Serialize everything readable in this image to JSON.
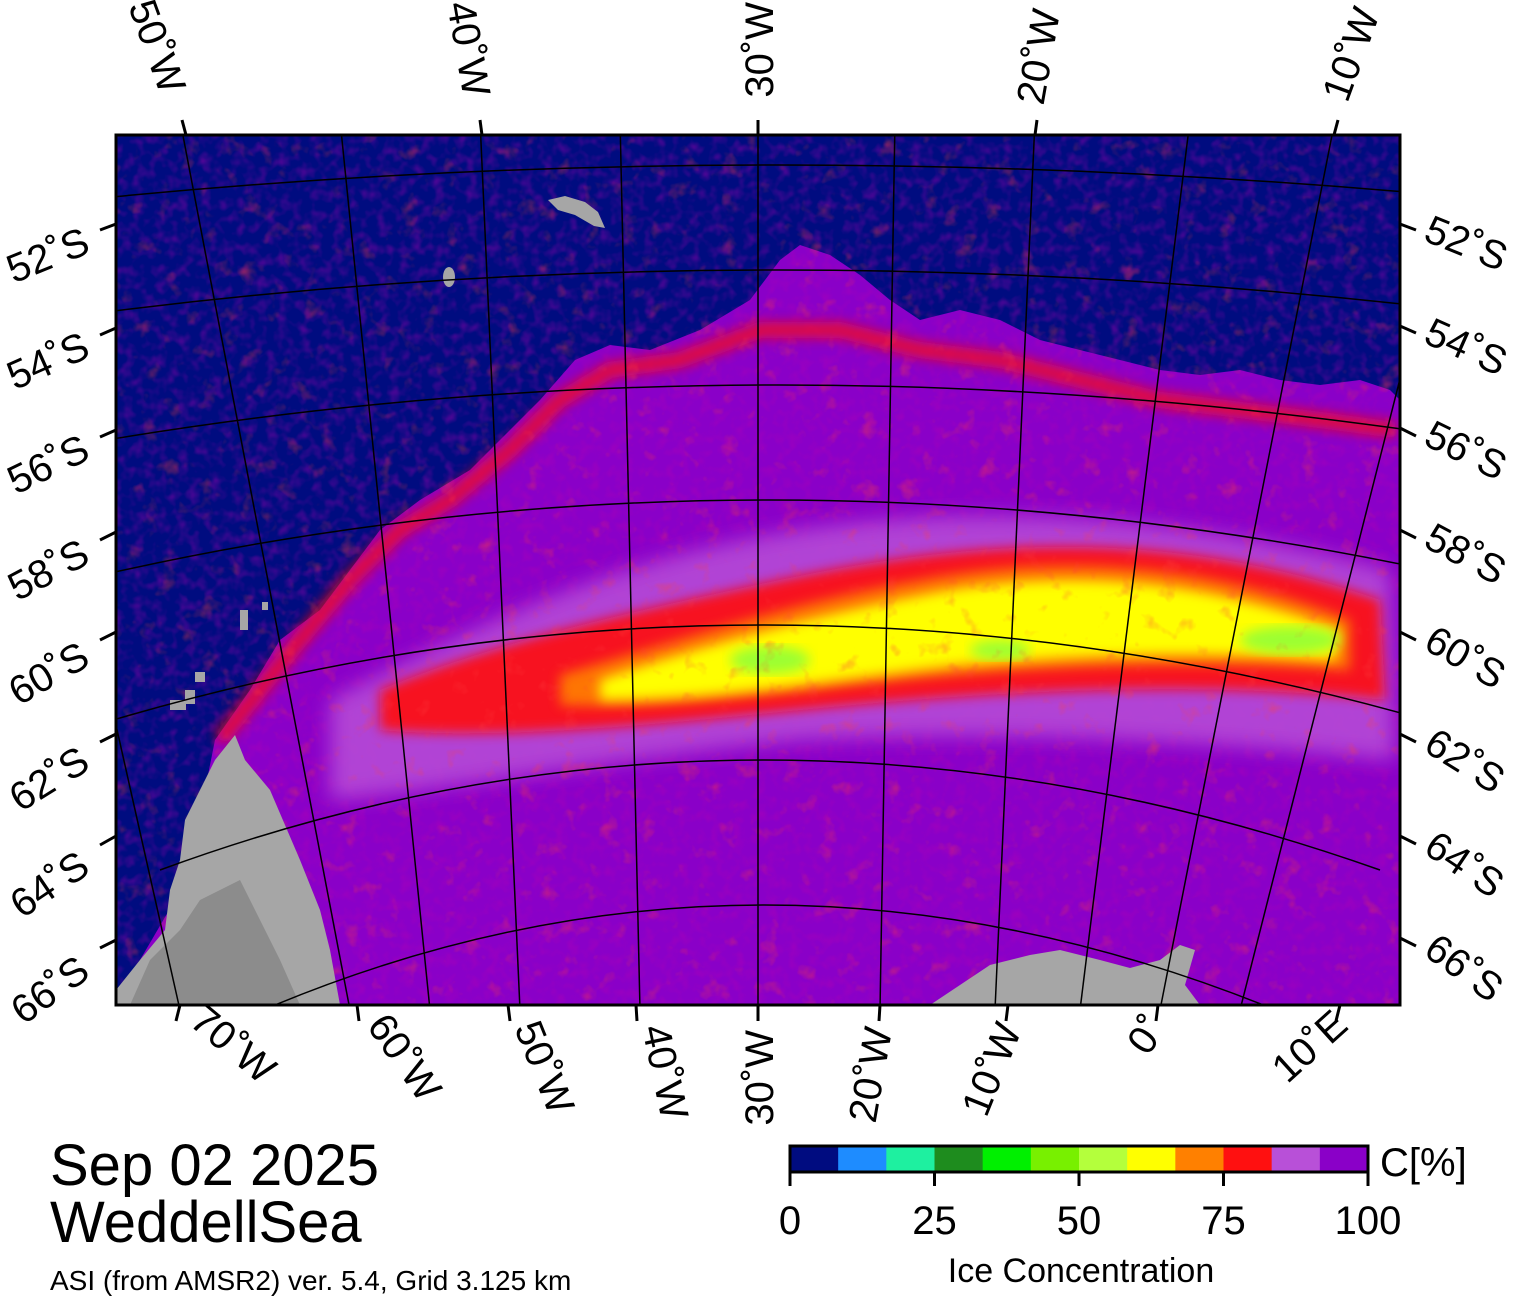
{
  "map": {
    "date": "Sep 02 2025",
    "region": "WeddellSea",
    "source_line": "ASI (from AMSR2) ver. 5.4,  Grid 3.125 km",
    "top_lon_labels": [
      "50˚W",
      "40˚W",
      "30˚W",
      "20˚W",
      "10˚W"
    ],
    "bottom_lon_labels": [
      "70˚W",
      "60˚W",
      "50˚W",
      "40˚W",
      "30˚W",
      "20˚W",
      "10˚W",
      "0˚",
      "10˚E"
    ],
    "lat_labels": [
      "52˚S",
      "54˚S",
      "56˚S",
      "58˚S",
      "60˚S",
      "62˚S",
      "64˚S",
      "66˚S"
    ],
    "colors": {
      "open_water": "#000c80",
      "land": "#a6a6a6",
      "land_dark": "#8c8c8c",
      "ice_high": "#7a0070",
      "ice_purple": "#8a00c8",
      "ice_lilac": "#b850d8",
      "ice_red": "#ff1010",
      "ice_orange": "#ff8000",
      "ice_yellow": "#ffff00",
      "ice_lime": "#9cff30"
    }
  },
  "colorbar": {
    "unit_label": "C[%]",
    "title": "Ice Concentration",
    "ticks": [
      "0",
      "25",
      "50",
      "75",
      "100"
    ],
    "colors": [
      "#000c80",
      "#1e8cff",
      "#1ef0a0",
      "#1e8c1e",
      "#00f000",
      "#78f000",
      "#b4ff3c",
      "#ffff00",
      "#ff8000",
      "#ff1010",
      "#b850d8",
      "#8a00c8"
    ]
  }
}
